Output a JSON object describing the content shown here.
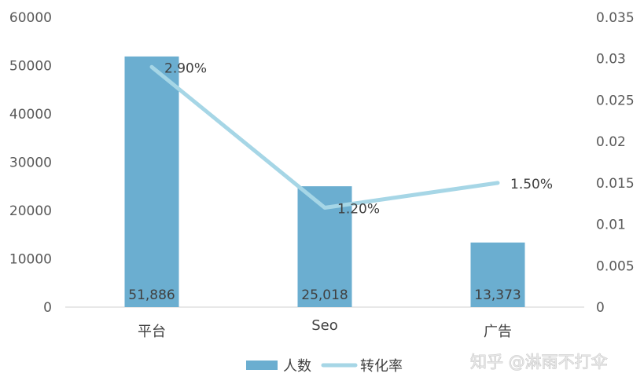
{
  "chart_data": {
    "type": "bar",
    "categories": [
      "平台",
      "Seo",
      "广告"
    ],
    "series": [
      {
        "name": "人数",
        "type": "bar",
        "axis": "left",
        "values": [
          51886,
          25018,
          13373
        ],
        "labels": [
          "51,886",
          "25,018",
          "13,373"
        ],
        "color": "#6baed0"
      },
      {
        "name": "转化率",
        "type": "line",
        "axis": "right",
        "values": [
          0.029,
          0.012,
          0.015
        ],
        "labels": [
          "2.90%",
          "1.20%",
          "1.50%"
        ],
        "color": "#a6d6e6"
      }
    ],
    "y_left": {
      "min": 0,
      "max": 60000,
      "ticks": [
        "0",
        "10000",
        "20000",
        "30000",
        "40000",
        "50000",
        "60000"
      ]
    },
    "y_right": {
      "min": 0,
      "max": 0.035,
      "ticks": [
        "0",
        "0.005",
        "0.01",
        "0.015",
        "0.02",
        "0.025",
        "0.03",
        "0.035"
      ]
    },
    "grid": false,
    "legend_position": "bottom-center"
  },
  "watermark": {
    "text": "知乎 @淋雨不打伞"
  }
}
